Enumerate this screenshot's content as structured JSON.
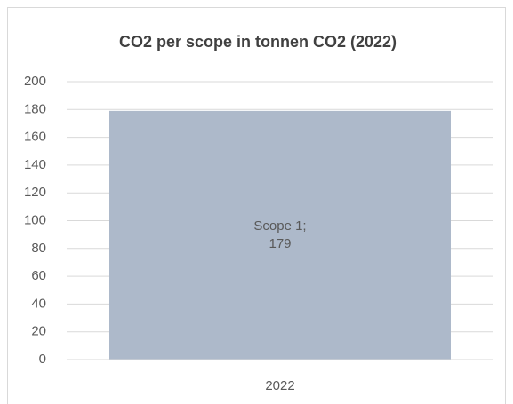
{
  "chart_data": {
    "type": "bar",
    "title": "CO2 per scope in tonnen CO2 (2022)",
    "categories": [
      "2022"
    ],
    "series": [
      {
        "name": "Scope 1",
        "color": "#adb9ca",
        "values": [
          179
        ],
        "value_labels": [
          "Scope 1; 179"
        ]
      }
    ],
    "ylim": [
      0,
      200
    ],
    "yticks": [
      0,
      20,
      40,
      60,
      80,
      100,
      120,
      140,
      160,
      180,
      200
    ],
    "grid": true
  }
}
